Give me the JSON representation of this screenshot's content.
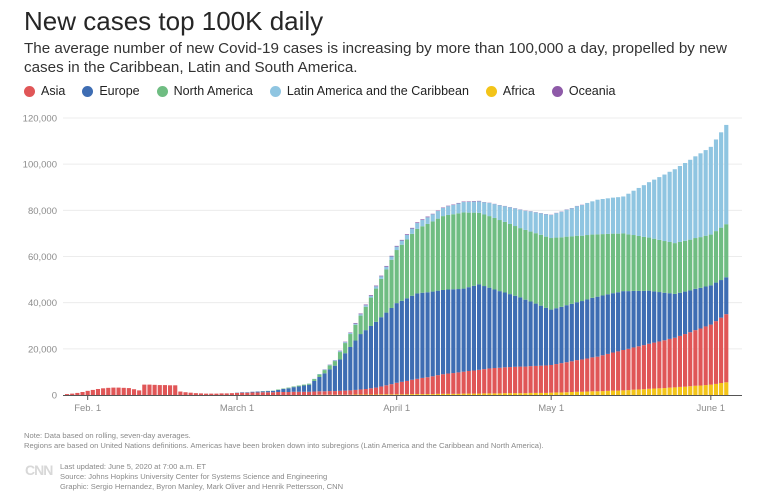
{
  "title": "New cases top 100K daily",
  "subtitle": "The average number of new Covid-19 cases is increasing by more than 100,000 a day, propelled by new cases in the Caribbean, Latin and South America.",
  "footer": {
    "note1": "Note: Data based on rolling, seven-day averages.",
    "note2": "Regions are based on United Nations definitions. Americas have been broken down into subregions (Latin America and the Caribbean and North America).",
    "logo": "CNN",
    "updated": "Last updated: June 5, 2020 at 7:00 a.m. ET",
    "source": "Source: Johns Hopkins University Center for Systems Science and Engineering",
    "graphic": "Graphic: Sergio Hernandez, Byron Manley, Mark Oliver and Henrik Pettersson, CNN"
  },
  "chart_data": {
    "type": "bar",
    "stacked": true,
    "title": "New cases top 100K daily",
    "xlabel": "",
    "ylabel": "",
    "x_start": "2020-01-28",
    "x_end": "2020-06-04",
    "x_step": "1 day",
    "ylim": [
      0,
      120000
    ],
    "grid": true,
    "legend_position": "top-left",
    "y_ticks": [
      {
        "value": 0,
        "label": "0"
      },
      {
        "value": 20000,
        "label": "20,000"
      },
      {
        "value": 40000,
        "label": "40,000"
      },
      {
        "value": 60000,
        "label": "60,000"
      },
      {
        "value": 80000,
        "label": "80,000"
      },
      {
        "value": 100000,
        "label": "100,000"
      },
      {
        "value": 120000,
        "label": "120,000"
      }
    ],
    "x_ticks": [
      {
        "date": "2020-02-01",
        "label": "Feb. 1"
      },
      {
        "date": "2020-03-01",
        "label": "March 1"
      },
      {
        "date": "2020-04-01",
        "label": "April 1"
      },
      {
        "date": "2020-05-01",
        "label": "May 1"
      },
      {
        "date": "2020-06-01",
        "label": "June 1"
      }
    ],
    "stack_order": [
      "Africa",
      "Asia",
      "Europe",
      "North America",
      "Latin America and the Caribbean",
      "Oceania"
    ],
    "series": [
      {
        "name": "Asia",
        "color": "#e05657",
        "values": [
          400,
          600,
          900,
          1300,
          1800,
          2200,
          2600,
          2900,
          3100,
          3200,
          3200,
          3100,
          3000,
          2500,
          2000,
          4500,
          4500,
          4400,
          4300,
          4300,
          4200,
          4200,
          1500,
          1200,
          1000,
          800,
          700,
          600,
          600,
          600,
          700,
          700,
          800,
          900,
          1000,
          1000,
          1100,
          1100,
          1200,
          1200,
          1200,
          1300,
          1300,
          1300,
          1400,
          1400,
          1400,
          1400,
          1500,
          1500,
          1500,
          1600,
          1600,
          1700,
          1800,
          1900,
          2000,
          2200,
          2400,
          2700,
          3000,
          3400,
          3900,
          4400,
          5000,
          5400,
          5800,
          6200,
          6600,
          7000,
          7300,
          7700,
          8100,
          8500,
          8800,
          9000,
          9300,
          9500,
          9800,
          10000,
          10300,
          10500,
          10800,
          11000,
          11100,
          11200,
          11300,
          11400,
          11500,
          11500,
          11600,
          11700,
          11800,
          11900,
          12000,
          12300,
          12700,
          13000,
          13300,
          13700,
          14000,
          14300,
          14700,
          15000,
          15500,
          16000,
          16500,
          17000,
          17500,
          17900,
          18300,
          18700,
          19100,
          19500,
          19900,
          20300,
          20700,
          21100,
          21500,
          22100,
          22800,
          23400,
          24100,
          24700,
          25400,
          26000,
          27200,
          28300,
          29500
        ]
      },
      {
        "name": "Europe",
        "color": "#3e6db3",
        "values": [
          0,
          0,
          0,
          0,
          0,
          0,
          0,
          0,
          0,
          0,
          0,
          0,
          0,
          0,
          0,
          0,
          0,
          0,
          0,
          0,
          0,
          0,
          0,
          0,
          0,
          0,
          0,
          0,
          0,
          0,
          0,
          0,
          0,
          100,
          200,
          200,
          300,
          400,
          400,
          500,
          600,
          900,
          1300,
          1600,
          2000,
          2300,
          2700,
          3000,
          4600,
          6200,
          7800,
          9400,
          11000,
          13600,
          16200,
          18800,
          21400,
          24000,
          25500,
          27000,
          28500,
          30000,
          31500,
          33000,
          34500,
          35100,
          35800,
          36400,
          37000,
          36900,
          36800,
          36700,
          36600,
          36500,
          36400,
          36300,
          36100,
          36000,
          36300,
          36700,
          37000,
          36000,
          35000,
          34000,
          33200,
          32400,
          31600,
          30800,
          30000,
          29000,
          28000,
          27000,
          26000,
          25000,
          24000,
          24200,
          24400,
          24700,
          24900,
          25100,
          25300,
          25600,
          25800,
          26000,
          25900,
          25800,
          25700,
          25600,
          25500,
          25000,
          24500,
          24000,
          23500,
          23000,
          22200,
          21400,
          20600,
          19800,
          19000,
          18700,
          18400,
          18100,
          17900,
          17600,
          17300,
          17000,
          16700,
          16300,
          16000
        ]
      },
      {
        "name": "North America",
        "color": "#6fbd82",
        "values": [
          0,
          0,
          0,
          0,
          0,
          0,
          0,
          0,
          0,
          0,
          0,
          0,
          0,
          0,
          0,
          0,
          0,
          0,
          0,
          0,
          0,
          0,
          0,
          0,
          0,
          0,
          0,
          0,
          0,
          0,
          0,
          0,
          0,
          0,
          0,
          0,
          0,
          0,
          100,
          100,
          100,
          200,
          200,
          300,
          300,
          400,
          400,
          500,
          800,
          1100,
          1400,
          1700,
          2000,
          3200,
          4400,
          5600,
          6800,
          8000,
          10100,
          12300,
          14400,
          16600,
          18700,
          20900,
          23000,
          24300,
          25500,
          26800,
          28000,
          28800,
          29600,
          30400,
          31200,
          32000,
          32300,
          32500,
          32800,
          33000,
          32300,
          31700,
          31000,
          31000,
          31000,
          31000,
          30800,
          30600,
          30400,
          30200,
          30000,
          30200,
          30300,
          30500,
          30700,
          30800,
          31000,
          30600,
          30100,
          29700,
          29200,
          28800,
          28300,
          27900,
          27400,
          27000,
          26600,
          26200,
          25800,
          25400,
          25000,
          24600,
          24200,
          23800,
          23400,
          23000,
          22800,
          22600,
          22400,
          22200,
          22000,
          22000,
          22000,
          22000,
          22000,
          22000,
          22000,
          22000,
          22300,
          22700,
          23000
        ]
      },
      {
        "name": "Latin America and the Caribbean",
        "color": "#8fc5e1",
        "values": [
          0,
          0,
          0,
          0,
          0,
          0,
          0,
          0,
          0,
          0,
          0,
          0,
          0,
          0,
          0,
          0,
          0,
          0,
          0,
          0,
          0,
          0,
          0,
          0,
          0,
          0,
          0,
          0,
          0,
          0,
          0,
          0,
          0,
          0,
          0,
          0,
          0,
          0,
          0,
          0,
          0,
          0,
          0,
          0,
          0,
          0,
          0,
          100,
          100,
          200,
          200,
          300,
          300,
          400,
          400,
          500,
          500,
          600,
          700,
          800,
          1000,
          1100,
          1200,
          1400,
          1500,
          1800,
          2000,
          2300,
          2500,
          2700,
          2900,
          3100,
          3300,
          3500,
          3800,
          4000,
          4300,
          4500,
          4700,
          4800,
          5000,
          5300,
          5700,
          6000,
          6400,
          6800,
          7200,
          7600,
          8000,
          8300,
          8700,
          9000,
          9300,
          9700,
          10000,
          10600,
          11100,
          11700,
          12200,
          12800,
          13300,
          13900,
          14400,
          15000,
          15200,
          15400,
          15600,
          15800,
          16000,
          17600,
          19200,
          20800,
          22400,
          24000,
          25600,
          27200,
          28800,
          30400,
          32000,
          32900,
          33700,
          34600,
          35400,
          36300,
          37100,
          38000,
          39700,
          41300,
          43000
        ]
      },
      {
        "name": "Africa",
        "color": "#f3c419",
        "values": [
          0,
          0,
          0,
          0,
          0,
          0,
          0,
          0,
          0,
          0,
          0,
          0,
          0,
          0,
          0,
          0,
          0,
          0,
          0,
          0,
          0,
          0,
          0,
          0,
          0,
          0,
          0,
          0,
          0,
          0,
          0,
          0,
          0,
          0,
          0,
          0,
          0,
          0,
          0,
          0,
          0,
          0,
          0,
          0,
          0,
          0,
          0,
          0,
          0,
          100,
          100,
          100,
          100,
          100,
          100,
          100,
          200,
          200,
          200,
          200,
          200,
          300,
          300,
          300,
          300,
          300,
          300,
          400,
          400,
          400,
          400,
          400,
          500,
          500,
          500,
          500,
          500,
          600,
          600,
          600,
          600,
          700,
          700,
          700,
          700,
          800,
          800,
          800,
          800,
          800,
          900,
          900,
          900,
          900,
          1000,
          1100,
          1100,
          1200,
          1300,
          1400,
          1400,
          1500,
          1600,
          1600,
          1700,
          1800,
          1900,
          1900,
          2000,
          2100,
          2300,
          2400,
          2500,
          2700,
          2800,
          2900,
          3000,
          3200,
          3300,
          3500,
          3600,
          3800,
          4000,
          4100,
          4300,
          4500,
          4800,
          5200,
          5500
        ]
      },
      {
        "name": "Oceania",
        "color": "#8e5aa8",
        "values": [
          0,
          0,
          0,
          0,
          0,
          0,
          0,
          0,
          0,
          0,
          0,
          0,
          0,
          0,
          0,
          0,
          0,
          0,
          0,
          0,
          0,
          0,
          0,
          0,
          0,
          0,
          0,
          0,
          0,
          0,
          0,
          0,
          0,
          0,
          0,
          0,
          0,
          0,
          0,
          0,
          0,
          0,
          0,
          0,
          0,
          0,
          0,
          0,
          0,
          0,
          100,
          100,
          100,
          200,
          200,
          200,
          300,
          300,
          300,
          300,
          300,
          300,
          300,
          300,
          300,
          300,
          300,
          300,
          300,
          300,
          300,
          200,
          200,
          200,
          200,
          200,
          200,
          200,
          200,
          200,
          200,
          100,
          100,
          100,
          100,
          100,
          100,
          100,
          100,
          100,
          100,
          100,
          100,
          100,
          100,
          100,
          100,
          100,
          100,
          100,
          100,
          0,
          0,
          0,
          0,
          0,
          0,
          0,
          0,
          0,
          0,
          0,
          0,
          0,
          0,
          0,
          0,
          0,
          0,
          0,
          0,
          0,
          0,
          0,
          0,
          0,
          0,
          0,
          0
        ]
      }
    ]
  }
}
